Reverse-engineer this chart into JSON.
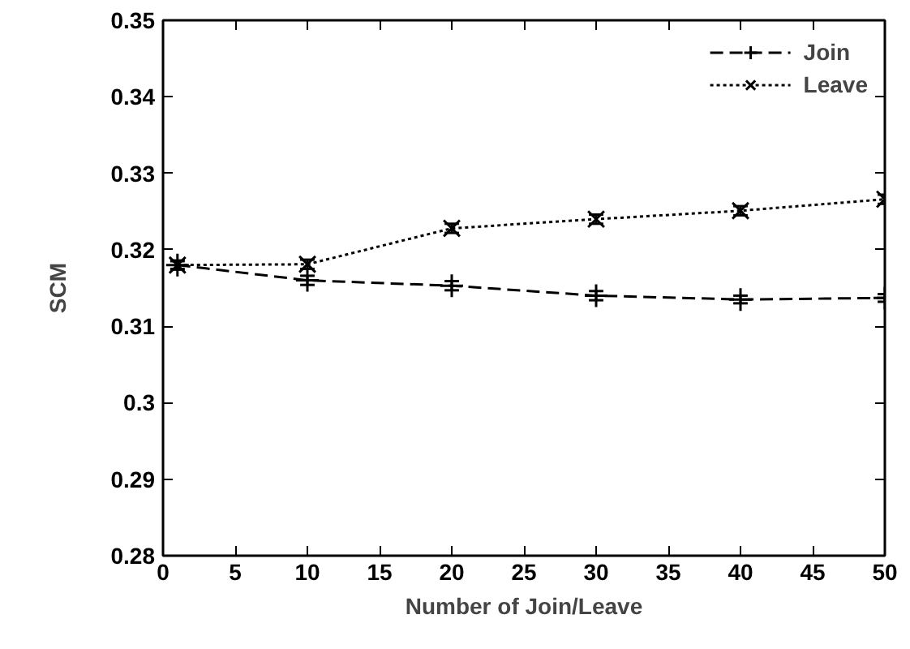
{
  "chart_data": {
    "type": "line",
    "xlabel": "Number of Join/Leave",
    "ylabel": "SCM",
    "x": [
      1,
      10,
      20,
      30,
      40,
      50
    ],
    "series": [
      {
        "name": "Join",
        "color": "#000000",
        "marker": "cross",
        "line_style": "dashed",
        "values": [
          0.318,
          0.316,
          0.3153,
          0.314,
          0.3135,
          0.3137
        ],
        "errors": [
          0.0006,
          0.0006,
          0.0006,
          0.0006,
          0.0005,
          0.0005
        ]
      },
      {
        "name": "Leave",
        "color": "#000000",
        "marker": "x",
        "line_style": "dotted",
        "values": [
          0.318,
          0.3181,
          0.3228,
          0.324,
          0.3251,
          0.3266
        ],
        "errors": [
          0.0005,
          0.0006,
          0.0006,
          0.0006,
          0.0006,
          0.0006
        ]
      }
    ],
    "xlim": [
      0,
      50
    ],
    "ylim": [
      0.28,
      0.35
    ],
    "xticks": [
      0,
      5,
      10,
      15,
      20,
      25,
      30,
      35,
      40,
      45,
      50
    ],
    "yticks": [
      0.28,
      0.29,
      0.3,
      0.31,
      0.32,
      0.33,
      0.34,
      0.35
    ],
    "grid": false,
    "legend": "top right"
  }
}
